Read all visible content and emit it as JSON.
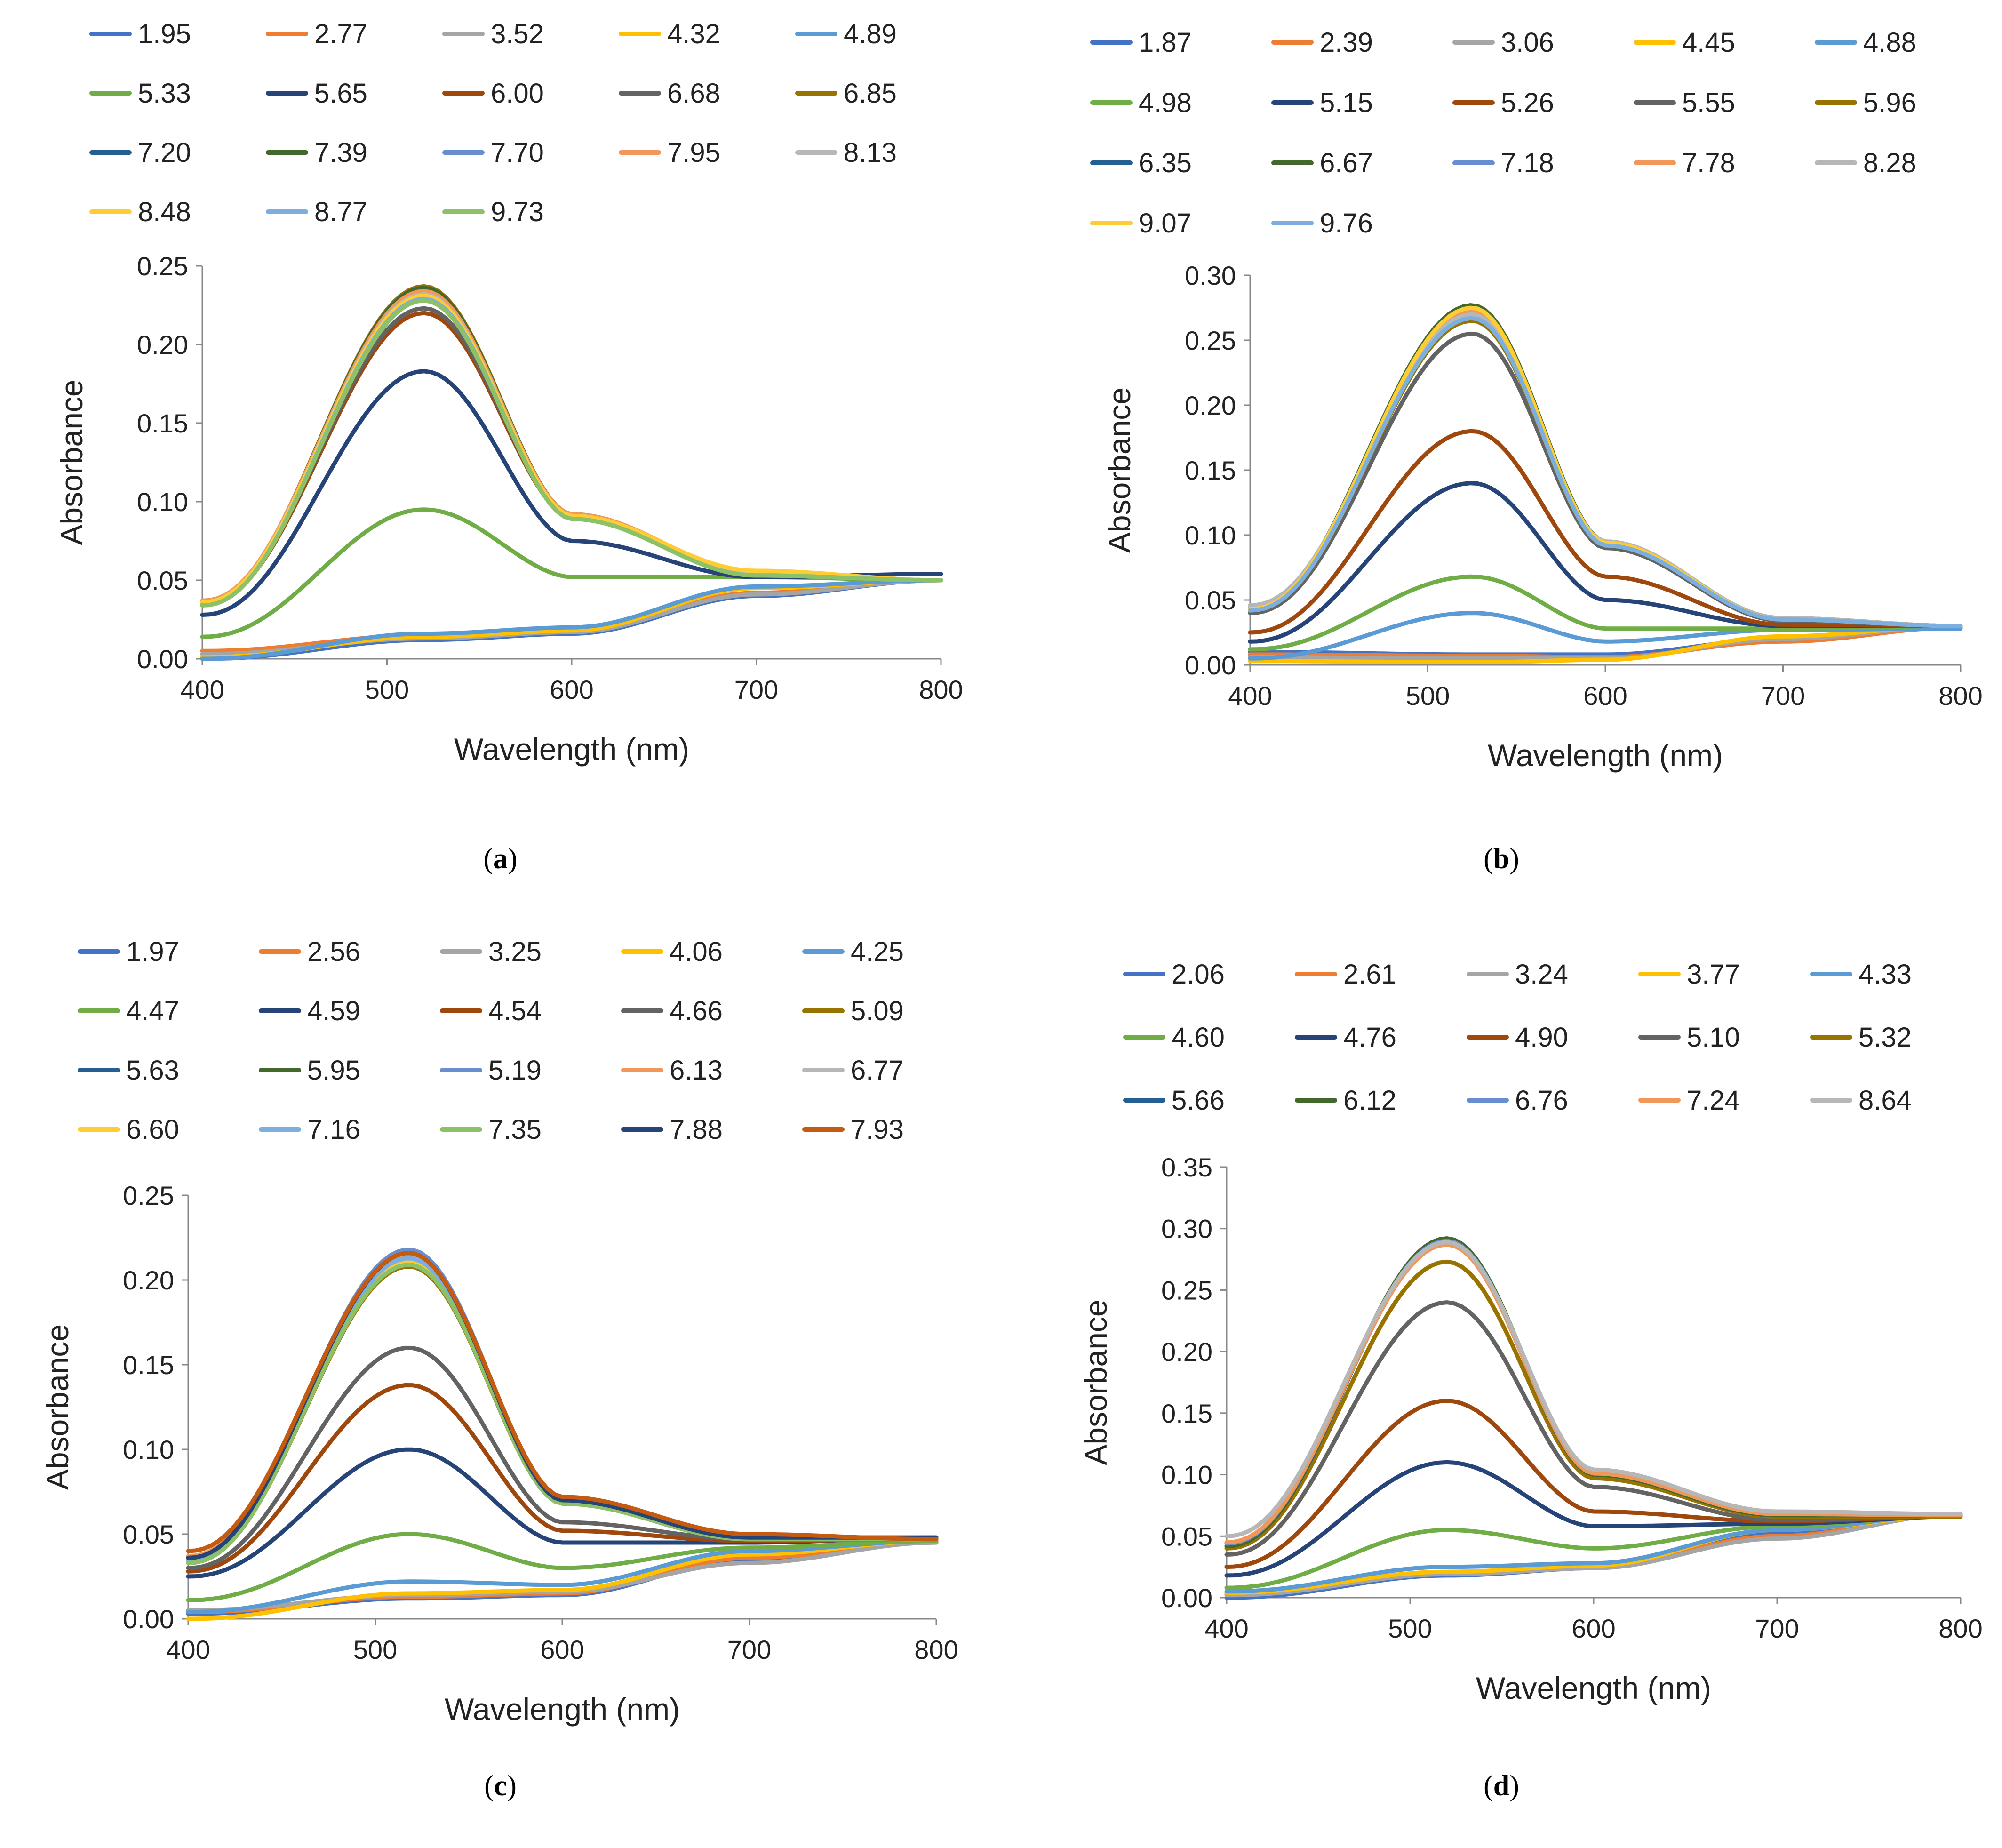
{
  "figure": {
    "x_axis_label": "Wavelength (nm)",
    "y_axis_label": "Absorbance",
    "xlim": [
      400,
      800
    ],
    "x_ticks": [
      "400",
      "500",
      "600",
      "700",
      "800"
    ]
  },
  "legend_colors": [
    "#4472C4",
    "#ED7D31",
    "#A5A5A5",
    "#FFC000",
    "#5B9BD5",
    "#70AD47",
    "#264478",
    "#9E480E",
    "#636363",
    "#997300",
    "#255E91",
    "#43682B",
    "#698ED0",
    "#F1975A",
    "#B7B7B7",
    "#FFCD33",
    "#7CAFDD",
    "#8CC168",
    "#264478",
    "#C55A11"
  ],
  "chart_data": [
    {
      "type": "line",
      "panel_label_prefix": "(",
      "panel_label_letter": "a",
      "panel_label_suffix": ")",
      "title": "",
      "xlabel": "Wavelength (nm)",
      "ylabel": "Absorbance",
      "xlim": [
        400,
        800
      ],
      "ylim": [
        0,
        0.25
      ],
      "y_ticks": [
        "0.00",
        "0.05",
        "0.10",
        "0.15",
        "0.20",
        "0.25"
      ],
      "peak_wavelength": 520,
      "legend_position": "top",
      "series": [
        {
          "name": "1.95",
          "values": [
            0.0,
            0.012,
            0.016,
            0.04,
            0.05
          ]
        },
        {
          "name": "2.77",
          "values": [
            0.005,
            0.015,
            0.018,
            0.042,
            0.05
          ]
        },
        {
          "name": "3.52",
          "values": [
            0.003,
            0.013,
            0.017,
            0.041,
            0.05
          ]
        },
        {
          "name": "4.32",
          "values": [
            0.001,
            0.014,
            0.018,
            0.045,
            0.05
          ]
        },
        {
          "name": "4.89",
          "values": [
            0.0,
            0.016,
            0.02,
            0.046,
            0.05
          ]
        },
        {
          "name": "5.33",
          "values": [
            0.014,
            0.095,
            0.052,
            0.052,
            0.05
          ]
        },
        {
          "name": "5.65",
          "values": [
            0.028,
            0.183,
            0.075,
            0.052,
            0.054
          ]
        },
        {
          "name": "6.00",
          "values": [
            0.035,
            0.22,
            0.09,
            0.054,
            0.05
          ]
        },
        {
          "name": "6.68",
          "values": [
            0.036,
            0.223,
            0.091,
            0.054,
            0.05
          ]
        },
        {
          "name": "6.85",
          "values": [
            0.036,
            0.237,
            0.092,
            0.055,
            0.05
          ]
        },
        {
          "name": "7.20",
          "values": [
            0.035,
            0.235,
            0.091,
            0.054,
            0.05
          ]
        },
        {
          "name": "7.39",
          "values": [
            0.036,
            0.236,
            0.092,
            0.054,
            0.05
          ]
        },
        {
          "name": "7.70",
          "values": [
            0.035,
            0.23,
            0.09,
            0.054,
            0.05
          ]
        },
        {
          "name": "7.95",
          "values": [
            0.037,
            0.234,
            0.092,
            0.055,
            0.05
          ]
        },
        {
          "name": "8.13",
          "values": [
            0.036,
            0.232,
            0.091,
            0.055,
            0.05
          ]
        },
        {
          "name": "8.48",
          "values": [
            0.036,
            0.231,
            0.091,
            0.056,
            0.05
          ]
        },
        {
          "name": "8.77",
          "values": [
            0.034,
            0.229,
            0.089,
            0.053,
            0.05
          ]
        },
        {
          "name": "9.73",
          "values": [
            0.034,
            0.228,
            0.089,
            0.053,
            0.05
          ]
        }
      ]
    },
    {
      "type": "line",
      "panel_label_prefix": "(",
      "panel_label_letter": "b",
      "panel_label_suffix": ")",
      "title": "",
      "xlabel": "Wavelength (nm)",
      "ylabel": "Absorbance",
      "xlim": [
        400,
        800
      ],
      "ylim": [
        0,
        0.3
      ],
      "y_ticks": [
        "0.00",
        "0.05",
        "0.10",
        "0.15",
        "0.20",
        "0.25",
        "0.30"
      ],
      "peak_wavelength": 525,
      "legend_position": "top",
      "series": [
        {
          "name": "1.87",
          "values": [
            0.01,
            0.008,
            0.008,
            0.02,
            0.029
          ]
        },
        {
          "name": "2.39",
          "values": [
            0.008,
            0.007,
            0.006,
            0.018,
            0.029
          ]
        },
        {
          "name": "3.06",
          "values": [
            0.006,
            0.005,
            0.005,
            0.02,
            0.03
          ]
        },
        {
          "name": "4.45",
          "values": [
            0.003,
            0.002,
            0.004,
            0.022,
            0.03
          ]
        },
        {
          "name": "4.88",
          "values": [
            0.005,
            0.04,
            0.018,
            0.027,
            0.028
          ]
        },
        {
          "name": "4.98",
          "values": [
            0.012,
            0.068,
            0.028,
            0.028,
            0.03
          ]
        },
        {
          "name": "5.15",
          "values": [
            0.018,
            0.14,
            0.05,
            0.03,
            0.03
          ]
        },
        {
          "name": "5.26",
          "values": [
            0.025,
            0.18,
            0.068,
            0.031,
            0.03
          ]
        },
        {
          "name": "5.55",
          "values": [
            0.04,
            0.255,
            0.09,
            0.034,
            0.03
          ]
        },
        {
          "name": "5.96",
          "values": [
            0.042,
            0.265,
            0.092,
            0.035,
            0.03
          ]
        },
        {
          "name": "6.35",
          "values": [
            0.042,
            0.268,
            0.093,
            0.035,
            0.03
          ]
        },
        {
          "name": "6.67",
          "values": [
            0.044,
            0.277,
            0.095,
            0.036,
            0.03
          ]
        },
        {
          "name": "7.18",
          "values": [
            0.044,
            0.274,
            0.094,
            0.036,
            0.03
          ]
        },
        {
          "name": "7.78",
          "values": [
            0.044,
            0.272,
            0.094,
            0.036,
            0.03
          ]
        },
        {
          "name": "8.28",
          "values": [
            0.046,
            0.27,
            0.095,
            0.036,
            0.03
          ]
        },
        {
          "name": "9.07",
          "values": [
            0.043,
            0.275,
            0.094,
            0.035,
            0.03
          ]
        },
        {
          "name": "9.76",
          "values": [
            0.042,
            0.267,
            0.092,
            0.035,
            0.03
          ]
        }
      ]
    },
    {
      "type": "line",
      "panel_label_prefix": "(",
      "panel_label_letter": "c",
      "panel_label_suffix": ")",
      "title": "",
      "xlabel": "Wavelength (nm)",
      "ylabel": "Absorbance",
      "xlim": [
        400,
        800
      ],
      "ylim": [
        0,
        0.25
      ],
      "y_ticks": [
        "0.00",
        "0.05",
        "0.10",
        "0.15",
        "0.20",
        "0.25"
      ],
      "peak_wavelength": 518,
      "legend_position": "top",
      "series": [
        {
          "name": "1.97",
          "values": [
            0.003,
            0.012,
            0.014,
            0.035,
            0.045
          ]
        },
        {
          "name": "2.56",
          "values": [
            0.004,
            0.013,
            0.015,
            0.036,
            0.045
          ]
        },
        {
          "name": "3.25",
          "values": [
            0.005,
            0.014,
            0.016,
            0.033,
            0.045
          ]
        },
        {
          "name": "4.06",
          "values": [
            0.0,
            0.015,
            0.017,
            0.038,
            0.046
          ]
        },
        {
          "name": "4.25",
          "values": [
            0.004,
            0.022,
            0.02,
            0.04,
            0.046
          ]
        },
        {
          "name": "4.47",
          "values": [
            0.011,
            0.05,
            0.03,
            0.042,
            0.046
          ]
        },
        {
          "name": "4.59",
          "values": [
            0.025,
            0.1,
            0.045,
            0.045,
            0.048
          ]
        },
        {
          "name": "4.54",
          "values": [
            0.028,
            0.138,
            0.052,
            0.046,
            0.047
          ]
        },
        {
          "name": "4.66",
          "values": [
            0.03,
            0.16,
            0.057,
            0.047,
            0.047
          ]
        },
        {
          "name": "5.09",
          "values": [
            0.033,
            0.208,
            0.068,
            0.047,
            0.047
          ]
        },
        {
          "name": "5.63",
          "values": [
            0.035,
            0.215,
            0.07,
            0.048,
            0.047
          ]
        },
        {
          "name": "5.95",
          "values": [
            0.034,
            0.211,
            0.069,
            0.048,
            0.048
          ]
        },
        {
          "name": "5.19",
          "values": [
            0.036,
            0.218,
            0.07,
            0.048,
            0.047
          ]
        },
        {
          "name": "6.13",
          "values": [
            0.037,
            0.214,
            0.071,
            0.048,
            0.047
          ]
        },
        {
          "name": "6.77",
          "values": [
            0.035,
            0.212,
            0.069,
            0.048,
            0.047
          ]
        },
        {
          "name": "6.60",
          "values": [
            0.034,
            0.21,
            0.069,
            0.047,
            0.047
          ]
        },
        {
          "name": "7.16",
          "values": [
            0.035,
            0.213,
            0.07,
            0.047,
            0.047
          ]
        },
        {
          "name": "7.35",
          "values": [
            0.033,
            0.209,
            0.068,
            0.047,
            0.047
          ]
        },
        {
          "name": "7.88",
          "values": [
            0.036,
            0.216,
            0.07,
            0.048,
            0.048
          ]
        },
        {
          "name": "7.93",
          "values": [
            0.04,
            0.216,
            0.072,
            0.05,
            0.047
          ]
        }
      ]
    },
    {
      "type": "line",
      "panel_label_prefix": "(",
      "panel_label_letter": "d",
      "panel_label_suffix": ")",
      "title": "",
      "xlabel": "Wavelength (nm)",
      "ylabel": "Absorbance",
      "xlim": [
        400,
        800
      ],
      "ylim": [
        0,
        0.35
      ],
      "y_ticks": [
        "0.00",
        "0.05",
        "0.10",
        "0.15",
        "0.20",
        "0.25",
        "0.30",
        "0.35"
      ],
      "peak_wavelength": 520,
      "legend_position": "top",
      "series": [
        {
          "name": "2.06",
          "values": [
            0.0,
            0.018,
            0.024,
            0.052,
            0.068
          ]
        },
        {
          "name": "2.61",
          "values": [
            0.003,
            0.02,
            0.025,
            0.05,
            0.068
          ]
        },
        {
          "name": "3.24",
          "values": [
            0.002,
            0.019,
            0.024,
            0.048,
            0.068
          ]
        },
        {
          "name": "3.77",
          "values": [
            0.004,
            0.021,
            0.026,
            0.055,
            0.067
          ]
        },
        {
          "name": "4.33",
          "values": [
            0.005,
            0.025,
            0.028,
            0.055,
            0.068
          ]
        },
        {
          "name": "4.60",
          "values": [
            0.008,
            0.055,
            0.04,
            0.058,
            0.067
          ]
        },
        {
          "name": "4.76",
          "values": [
            0.018,
            0.11,
            0.058,
            0.06,
            0.066
          ]
        },
        {
          "name": "4.90",
          "values": [
            0.025,
            0.16,
            0.07,
            0.062,
            0.066
          ]
        },
        {
          "name": "5.10",
          "values": [
            0.035,
            0.24,
            0.09,
            0.063,
            0.066
          ]
        },
        {
          "name": "5.32",
          "values": [
            0.04,
            0.273,
            0.097,
            0.066,
            0.066
          ]
        },
        {
          "name": "5.66",
          "values": [
            0.042,
            0.288,
            0.1,
            0.067,
            0.067
          ]
        },
        {
          "name": "6.12",
          "values": [
            0.042,
            0.292,
            0.1,
            0.067,
            0.067
          ]
        },
        {
          "name": "6.76",
          "values": [
            0.044,
            0.29,
            0.101,
            0.068,
            0.067
          ]
        },
        {
          "name": "7.24",
          "values": [
            0.045,
            0.287,
            0.101,
            0.068,
            0.067
          ]
        },
        {
          "name": "8.64",
          "values": [
            0.05,
            0.289,
            0.104,
            0.07,
            0.068
          ]
        }
      ]
    }
  ]
}
